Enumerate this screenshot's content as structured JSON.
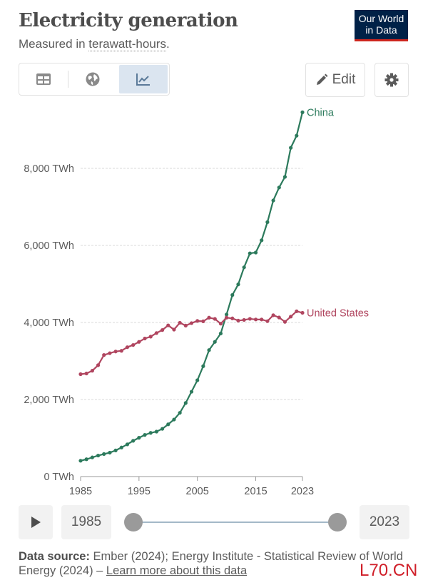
{
  "header": {
    "title": "Electricity generation",
    "subtitle_prefix": "Measured in ",
    "subtitle_unit": "terawatt-hours",
    "subtitle_suffix": ".",
    "logo_line1": "Our World",
    "logo_line2": "in Data"
  },
  "toolbar": {
    "tabs": [
      {
        "name": "table",
        "icon": "table-icon",
        "active": false
      },
      {
        "name": "map",
        "icon": "globe-icon",
        "active": false
      },
      {
        "name": "chart",
        "icon": "line-chart-icon",
        "active": true
      }
    ],
    "edit_label": "Edit",
    "settings_icon": "gear-icon"
  },
  "colors": {
    "china": "#2c7a5c",
    "united_states": "#b0455f",
    "logo_bg": "#002147",
    "accent_red": "#ce261e"
  },
  "chart_data": {
    "type": "line",
    "title": "Electricity generation",
    "subtitle": "Measured in terawatt-hours.",
    "xlabel": "",
    "ylabel": "",
    "xlim": [
      1985,
      2023
    ],
    "ylim": [
      0,
      9500
    ],
    "grid": true,
    "y_ticks": [
      0,
      2000,
      4000,
      6000,
      8000
    ],
    "y_tick_labels": [
      "0 TWh",
      "2,000 TWh",
      "4,000 TWh",
      "6,000 TWh",
      "8,000 TWh"
    ],
    "x_ticks": [
      1985,
      1995,
      2005,
      2015,
      2023
    ],
    "x_tick_labels": [
      "1985",
      "1995",
      "2005",
      "2015",
      "2023"
    ],
    "legend": "inline-right",
    "x": [
      1985,
      1986,
      1987,
      1988,
      1989,
      1990,
      1991,
      1992,
      1993,
      1994,
      1995,
      1996,
      1997,
      1998,
      1999,
      2000,
      2001,
      2002,
      2003,
      2004,
      2005,
      2006,
      2007,
      2008,
      2009,
      2010,
      2011,
      2012,
      2013,
      2014,
      2015,
      2016,
      2017,
      2018,
      2019,
      2020,
      2021,
      2022,
      2023
    ],
    "series": [
      {
        "name": "China",
        "label": "China",
        "values": [
          411,
          449,
          497,
          545,
          585,
          621,
          678,
          754,
          836,
          928,
          1007,
          1081,
          1134,
          1167,
          1239,
          1356,
          1480,
          1654,
          1910,
          2203,
          2500,
          2866,
          3282,
          3496,
          3714,
          4207,
          4713,
          4988,
          5432,
          5795,
          5815,
          6133,
          6604,
          7166,
          7503,
          7779,
          8535,
          8849,
          9456
        ]
      },
      {
        "name": "United States",
        "label": "United States",
        "values": [
          2657,
          2676,
          2747,
          2891,
          3155,
          3203,
          3246,
          3264,
          3358,
          3415,
          3496,
          3584,
          3632,
          3726,
          3803,
          3925,
          3815,
          3992,
          3919,
          3983,
          4040,
          4030,
          4125,
          4093,
          3969,
          4125,
          4106,
          4048,
          4066,
          4094,
          4078,
          4077,
          4034,
          4188,
          4129,
          4016,
          4152,
          4290,
          4251
        ]
      }
    ]
  },
  "timeline": {
    "start_year": "1985",
    "end_year": "2023",
    "start_fraction": 0,
    "end_fraction": 1
  },
  "footer": {
    "source_label": "Data source:",
    "source_text": " Ember (2024); Energy Institute - Statistical Review of World Energy (2024) – ",
    "learn_more": "Learn more about this data"
  },
  "watermark": "L70.CN"
}
